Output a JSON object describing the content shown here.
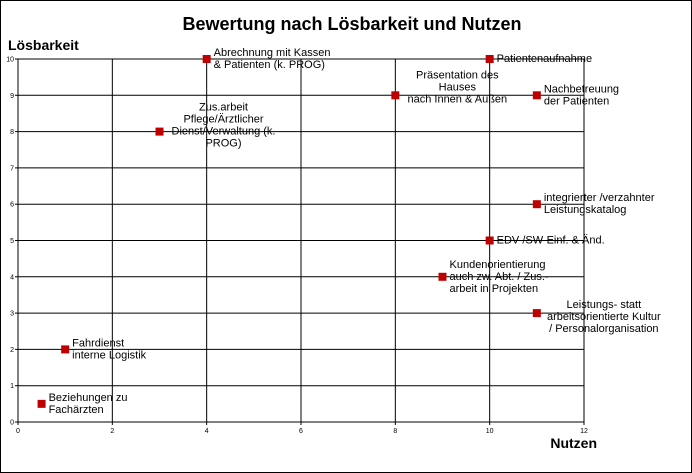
{
  "chart_data": {
    "type": "scatter",
    "title": "Bewertung nach Lösbarkeit und Nutzen",
    "xlabel": "Nutzen",
    "ylabel": "Lösbarkeit",
    "xlim": [
      0,
      12
    ],
    "ylim": [
      0,
      10
    ],
    "x_ticks": [
      0,
      2,
      4,
      6,
      8,
      10,
      12
    ],
    "y_ticks": [
      0,
      1,
      2,
      3,
      4,
      5,
      6,
      7,
      8,
      9,
      10
    ],
    "grid": true,
    "marker_color": "#c00000",
    "points": [
      {
        "x": 4,
        "y": 10,
        "label": [
          "Abrechnung mit Kassen",
          "& Patienten (k. PROG)"
        ]
      },
      {
        "x": 10,
        "y": 10,
        "label": [
          "Patientenaufnahme"
        ]
      },
      {
        "x": 8,
        "y": 9,
        "label": [
          "Präsentation des",
          "Hauses",
          "nach Innen & Außen"
        ]
      },
      {
        "x": 11,
        "y": 9,
        "label": [
          "Nachbetreuung",
          "der Patienten"
        ]
      },
      {
        "x": 3,
        "y": 8,
        "label": [
          "Zus.arbeit",
          "Pflege/Ärztlicher",
          "Dienst/Verwaltung (k.",
          "PROG)"
        ]
      },
      {
        "x": 11,
        "y": 6,
        "label": [
          "integrierter /verzahnter",
          "Leistungskatalog"
        ]
      },
      {
        "x": 10,
        "y": 5,
        "label": [
          "EDV-/SW-Einf. & Änd."
        ]
      },
      {
        "x": 9,
        "y": 4,
        "label": [
          "Kundenorientierung",
          "auch zw. Abt. / Zus.-",
          "arbeit in Projekten"
        ]
      },
      {
        "x": 11,
        "y": 3,
        "label": [
          "Leistungs- statt",
          "arbeitsorientierte Kultur",
          "/ Personalorganisation"
        ]
      },
      {
        "x": 1,
        "y": 2,
        "label": [
          "Fahrdienst",
          "interne Logistik"
        ]
      },
      {
        "x": 0.5,
        "y": 0.5,
        "label": [
          "Beziehungen zu",
          "Fachärzten"
        ]
      }
    ]
  }
}
